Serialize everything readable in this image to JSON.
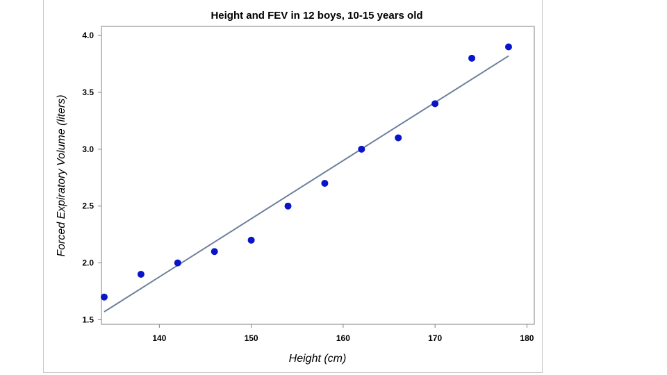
{
  "chart_data": {
    "type": "scatter",
    "title": "Height and FEV in 12 boys, 10-15 years old",
    "xlabel": "Height (cm)",
    "ylabel": "Forced Expiratory Volume (liters)",
    "xlim": [
      133.7,
      180.8
    ],
    "ylim": [
      1.46,
      4.08
    ],
    "x_ticks": [
      140,
      150,
      160,
      170,
      180
    ],
    "x_tick_labels": [
      "140",
      "150",
      "160",
      "170",
      "180"
    ],
    "y_ticks": [
      1.5,
      2.0,
      2.5,
      3.0,
      3.5,
      4.0
    ],
    "y_tick_labels": [
      "1.5",
      "2.0",
      "2.5",
      "3.0",
      "3.5",
      "4.0"
    ],
    "grid": false,
    "series": [
      {
        "x": [
          134,
          138,
          142,
          146,
          150,
          154,
          158,
          162,
          166,
          170,
          174,
          178
        ],
        "y": [
          1.7,
          1.9,
          2.0,
          2.1,
          2.2,
          2.5,
          2.7,
          3.0,
          3.1,
          3.4,
          3.8,
          3.9
        ]
      }
    ],
    "fit_line": {
      "x": [
        134,
        178
      ],
      "y": [
        1.57,
        3.82
      ]
    },
    "colors": {
      "points": "#0a14c8",
      "line": "#6d7f9c",
      "axis": "#808080"
    }
  }
}
